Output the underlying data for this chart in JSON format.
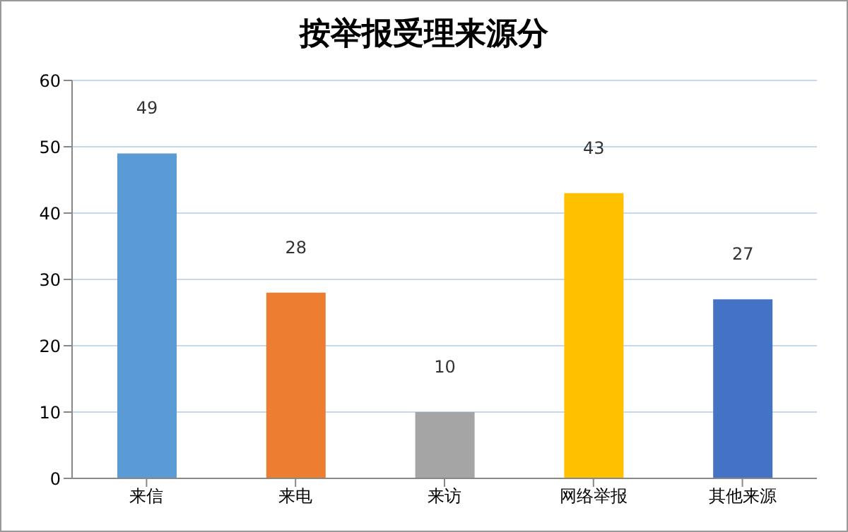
{
  "chart_data": {
    "type": "bar",
    "title": "按举报受理来源分",
    "categories": [
      "来信",
      "来电",
      "来访",
      "网络举报",
      "其他来源"
    ],
    "values": [
      49,
      28,
      10,
      43,
      27
    ],
    "colors": [
      "#5b9bd5",
      "#ed7d31",
      "#a5a5a5",
      "#ffc000",
      "#4472c4"
    ],
    "ylim": [
      0,
      60
    ],
    "yticks": [
      0,
      10,
      20,
      30,
      40,
      50,
      60
    ],
    "grid": "y",
    "data_labels": true
  }
}
